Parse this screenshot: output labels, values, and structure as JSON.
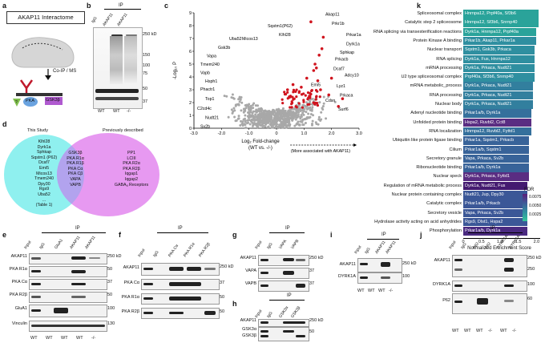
{
  "panels": {
    "a": "a",
    "b": "b",
    "c": "c",
    "d": "d",
    "e": "e",
    "f": "f",
    "g": "g",
    "h": "h",
    "i": "i",
    "j": "j",
    "k": "k"
  },
  "panel_a": {
    "title": "AKAP11 Interactome",
    "coip": "Co-IP / MS",
    "q": "?",
    "pka": "PKA",
    "gsk": "GSK3β"
  },
  "panel_b": {
    "ip": "IP",
    "lanes": [
      "IgG",
      "AKAP11",
      "AKAP11"
    ],
    "genotypes": [
      "WT",
      "WT",
      "-/-"
    ],
    "mw": [
      "250 kD",
      "150",
      "100",
      "75",
      "50",
      "37"
    ]
  },
  "panel_c": {
    "xlabel": "Log₂ Fold-change",
    "xlabel2": "(WT vs. -/-)",
    "arrow_note": "(More associated with AKAP11)",
    "ylabel": "-Log₁₀ P",
    "xticks": [
      "-3.0",
      "-2.0",
      "-1.0",
      "0",
      "1.0",
      "2.0",
      "3.0"
    ],
    "yticks": [
      "0",
      "1",
      "2",
      "3",
      "4",
      "5",
      "6",
      "7",
      "8",
      "9"
    ],
    "labels": [
      "Akap11",
      "Prkr1b",
      "Prkar1a",
      "Dyrk1a",
      "Sphkap",
      "Prkacb",
      "Dcaf7",
      "Adcy10",
      "Lyz1",
      "Prkaca",
      "Cdsn",
      "Surf6",
      "Sqstm1(P62)",
      "Klhl28",
      "Micos13",
      "Uba52",
      "Gsk3b",
      "Vapa",
      "Tmem240",
      "Vapb",
      "Hsph1",
      "Phactr1",
      "Top1",
      "C2cd4c",
      "Nudt21",
      "Sv2b",
      "Emi5"
    ]
  },
  "panel_d": {
    "left_title": "This Study",
    "right_title": "Previously described",
    "left": [
      "Klhl28",
      "Dyrk1a",
      "Sphkap",
      "Sqstm1 (P62)",
      "Dcaf7",
      "Emi5",
      "Micos13",
      "Tmem240",
      "Dpy30",
      "Rgs9",
      "Uba52",
      "...",
      "(Table 1)"
    ],
    "middle": [
      "GSK3β",
      "PKA R1α",
      "PKA R1β",
      "PKA Cα",
      "PKA Cβ",
      "VAPA",
      "VAPB"
    ],
    "right": [
      "PP1",
      "LCIII",
      "PKA R2α",
      "PKA R2β",
      "Iqgap1",
      "Iqgap2",
      "GABAₐ Receptors"
    ]
  },
  "panel_e": {
    "ip": "IP",
    "lanes": [
      "Input",
      "IgG",
      "GluA1",
      "AKAP11",
      "AKAP11"
    ],
    "genotypes": [
      "WT",
      "WT",
      "WT",
      "WT",
      "-/-"
    ],
    "rows": [
      "AKAP11",
      "PKA R1α",
      "PKA Cα",
      "PKA R2β",
      "GluA1",
      "Vinculin"
    ],
    "mw": [
      "250 kD",
      "50",
      "37",
      "50",
      "100",
      "130"
    ]
  },
  "panel_f": {
    "ip": "IP",
    "lanes": [
      "Input",
      "IgG",
      "PKA Cα",
      "PKA R1α",
      "PKA R2β"
    ],
    "rows": [
      "AKAP11",
      "PKA Cα",
      "PKA R1α",
      "PKA R2β"
    ],
    "mw": [
      "250 kD",
      "37",
      "50",
      "50"
    ]
  },
  "panel_g": {
    "ip": "IP",
    "lanes": [
      "Input",
      "IgG",
      "VAPA",
      "VAPB"
    ],
    "rows": [
      "AKAP11",
      "VAPA",
      "VAPB"
    ],
    "mw": [
      "250 kD",
      "37",
      "37"
    ]
  },
  "panel_h": {
    "ip": "IP",
    "lanes": [
      "Input",
      "IgG",
      "GSK3α",
      "GSK3β"
    ],
    "rows": [
      "AKAP11",
      "GSK3α",
      "GSK3β"
    ],
    "mw": [
      "250 kD",
      "50"
    ]
  },
  "panel_i": {
    "ip": "IP",
    "lanes": [
      "Input",
      "IgG",
      "AKAP11",
      "AKAP11"
    ],
    "genotypes": [
      "WT",
      "WT",
      "WT",
      "-/-"
    ],
    "rows": [
      "AKAP11",
      "DYRK1A"
    ],
    "mw": [
      "250 kD",
      "100"
    ]
  },
  "panel_j": {
    "ip": "IP",
    "lanes": [
      "Input",
      "IgG",
      "P62",
      "P62",
      "DYRK1A",
      "DYRK1A"
    ],
    "genotypes": [
      "WT",
      "WT",
      "WT",
      "-/-",
      "WT",
      "-/-"
    ],
    "rows": [
      "AKAP11",
      "DYRK1A",
      "P62"
    ],
    "mw": [
      "250 kD",
      "250",
      "100",
      "60"
    ]
  },
  "panel_k": {
    "xlabel": "Normalized Enrichment Score",
    "xticks": [
      "0",
      "0.5",
      "1.0",
      "1.5",
      "2.0"
    ],
    "fdr_title": "FDR",
    "fdr_ticks": [
      "0.0075",
      "0.0050",
      "0.0025"
    ],
    "terms": [
      {
        "term": "Spliceosomal complex",
        "genes": "Hnrnpa12, Prpf40a, Sf3b6",
        "score": 2.05,
        "color": "#2aa39a"
      },
      {
        "term": "Catalytic step 2 spliceosome",
        "genes": "Hnrnpa12, Sf3b6, Snrnp40",
        "score": 2.05,
        "color": "#2aa39a"
      },
      {
        "term": "RNA splicing via transesterification reactions",
        "genes": "Dyrk1a, Hnrnpa12, Prpf40a",
        "score": 2.0,
        "color": "#2aa39a"
      },
      {
        "term": "Protein Kinase A binding",
        "genes": "Prkar1b, Akap11, Prkar1a",
        "score": 2.0,
        "color": "#2f8fa0"
      },
      {
        "term": "Nuclear transport",
        "genes": "Sqstm1, Gsk3b, Prkaca",
        "score": 1.95,
        "color": "#2f8fa0"
      },
      {
        "term": "RNA splicing",
        "genes": "Dyrk1a, Fus, Hnrnpa12",
        "score": 1.95,
        "color": "#2f8fa0"
      },
      {
        "term": "mRNA processing",
        "genes": "Dyrk1a, Prkaca, Nudt21",
        "score": 1.95,
        "color": "#2f8fa0"
      },
      {
        "term": "U2 type spliceosomal complex",
        "genes": "Prpf40a, Sf3b6, Snrnp40",
        "score": 1.95,
        "color": "#2f8fa0"
      },
      {
        "term": "mRNA metabolic_process",
        "genes": "Dyrk1a, Prkaca, Nudt21",
        "score": 1.9,
        "color": "#327f9e"
      },
      {
        "term": "RNA processing",
        "genes": "Dyrk1a, Prkaca, Nudt21",
        "score": 1.9,
        "color": "#327f9e"
      },
      {
        "term": "Nuclear body",
        "genes": "Dyrk1a, Prkaca, Nudt21",
        "score": 1.9,
        "color": "#327f9e"
      },
      {
        "term": "Adenyl nucleotide binding",
        "genes": "Prkar1a/b, Dyrk1a",
        "score": 1.85,
        "color": "#35709c"
      },
      {
        "term": "Unfolded protein binding",
        "genes": "Hspa2, Ruvbl2, Cct8",
        "score": 1.85,
        "color": "#5a2d82"
      },
      {
        "term": "RNA localization",
        "genes": "Hnrnpa12, Ruvbl2, Fyttd1",
        "score": 1.85,
        "color": "#35709c"
      },
      {
        "term": "Ubiquitin like protein ligase binding",
        "genes": "Prkar1a, Sqstm1, Prkacb",
        "score": 1.8,
        "color": "#386399"
      },
      {
        "term": "Cilium",
        "genes": "Prkar1a/b, Sqstm1",
        "score": 1.8,
        "color": "#386399"
      },
      {
        "term": "Secretory granule",
        "genes": "Vapa, Prkaca, Sv2b",
        "score": 1.8,
        "color": "#386399"
      },
      {
        "term": "Ribonucleotide binding",
        "genes": "Prkar1a/b, Dyrk1a",
        "score": 1.8,
        "color": "#386399"
      },
      {
        "term": "Nuclear speck",
        "genes": "Dyrk1a, Prkaca, Fyttd1",
        "score": 1.8,
        "color": "#5a2d82"
      },
      {
        "term": "Regulation of mRNA metabolic process",
        "genes": "Dyrk1a, Nudt21, Fus",
        "score": 1.75,
        "color": "#441a70"
      },
      {
        "term": "Nuclear protein containing complex",
        "genes": "Nudt21, Jup, Dpy30",
        "score": 1.75,
        "color": "#3b5797"
      },
      {
        "term": "Catalytic complex",
        "genes": "Prkar1a/b, Prkacb",
        "score": 1.75,
        "color": "#3b5797"
      },
      {
        "term": "Secretory vesicle",
        "genes": "Vapa, Prkaca, Sv2b",
        "score": 1.75,
        "color": "#3b5797"
      },
      {
        "term": "Hydrolase activity acting on acid anhydrides",
        "genes": "Rgs9, Dlst1, Hspa2",
        "score": 1.75,
        "color": "#3b5797"
      },
      {
        "term": "Phosphorylation",
        "genes": "Prkar1a/b, Dyrk1a",
        "score": 1.75,
        "color": "#4a2a80"
      }
    ]
  }
}
